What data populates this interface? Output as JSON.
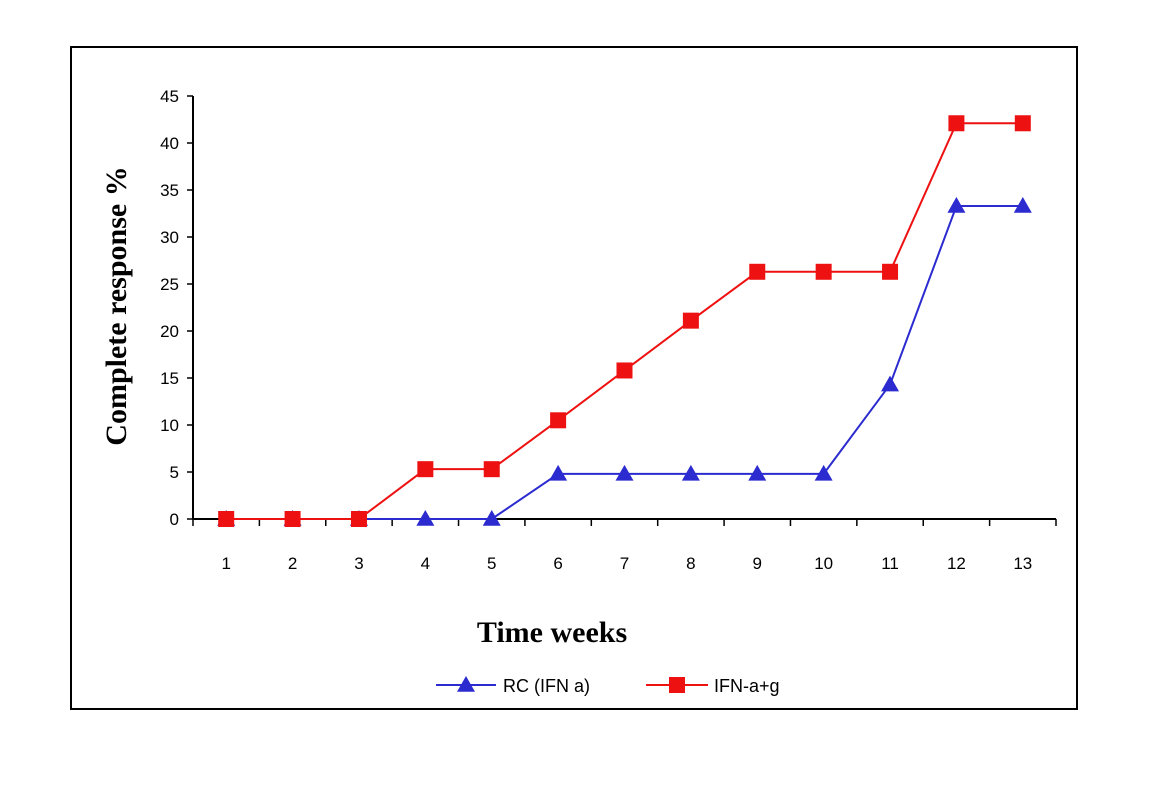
{
  "chart_data": {
    "type": "line",
    "title": "",
    "xlabel": "Time weeks",
    "ylabel": "Complete response %",
    "categories": [
      "1",
      "2",
      "3",
      "4",
      "5",
      "6",
      "7",
      "8",
      "9",
      "10",
      "11",
      "12",
      "13"
    ],
    "ylim": [
      0,
      45
    ],
    "yticks": [
      0,
      5,
      10,
      15,
      20,
      25,
      30,
      35,
      40,
      45
    ],
    "grid": false,
    "legend": "bottom",
    "series": [
      {
        "name": "RC (IFN a)",
        "color": "#2b2bd0",
        "marker": "triangle",
        "values": [
          0,
          0,
          0,
          0,
          0,
          4.8,
          4.8,
          4.8,
          4.8,
          4.8,
          14.3,
          33.3,
          33.3
        ]
      },
      {
        "name": "IFN-a+g",
        "color": "#ee1111",
        "marker": "square",
        "values": [
          0,
          0,
          0,
          5.3,
          5.3,
          10.5,
          15.8,
          21.1,
          26.3,
          26.3,
          26.3,
          42.1,
          42.1
        ]
      }
    ]
  }
}
